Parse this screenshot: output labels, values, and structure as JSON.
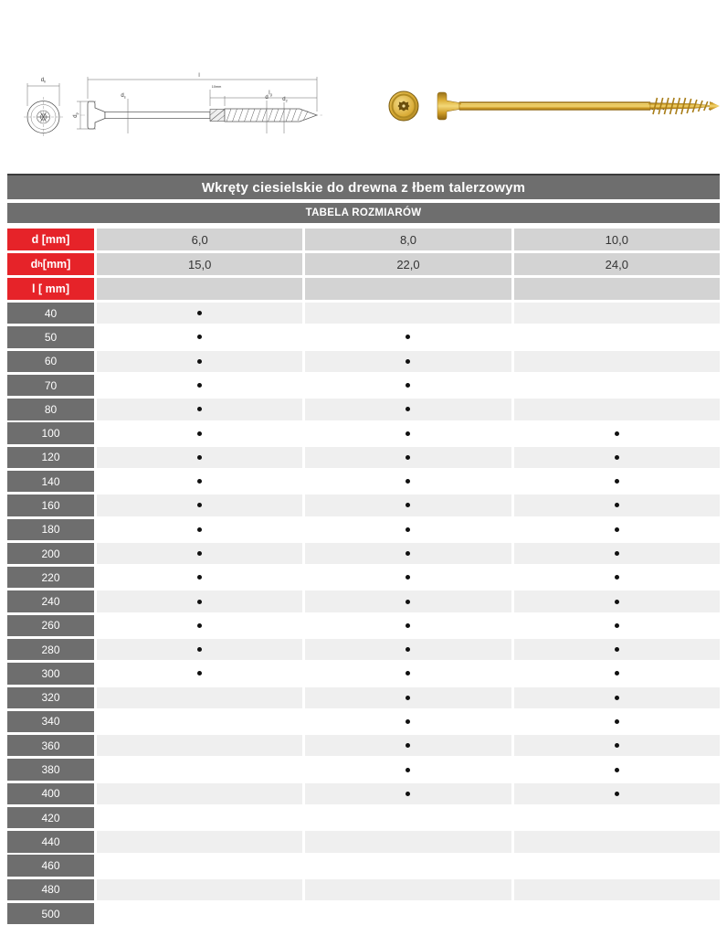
{
  "colors": {
    "bar_gray": "#6e6e6e",
    "bar_top_edge": "#3c3c3c",
    "label_red": "#e62329",
    "spec_cell_gray": "#d3d3d3",
    "row_alt_gray": "#efefef",
    "row_white": "#ffffff",
    "dot_black": "#111111",
    "screw_gold": "#d9a62e"
  },
  "drawing": {
    "labels": {
      "head_diameter": {
        "main": "d",
        "sub": "h",
        "rest": ""
      },
      "head_height": {
        "main": "d",
        "sub": "p",
        "rest": ""
      },
      "shank_diameter": {
        "main": "d",
        "sub": "s",
        "rest": ""
      },
      "thread_diameter": {
        "main": "d",
        "sub": "",
        "rest": ""
      },
      "tip_diameter": {
        "main": "d",
        "sub": "2",
        "rest": ""
      },
      "total_length": {
        "main": "l",
        "sub": "",
        "rest": ""
      },
      "thread_length": {
        "main": "l",
        "sub": "g",
        "rest": ""
      },
      "cutter_note": {
        "main": "10mm",
        "sub": "",
        "rest": ""
      }
    }
  },
  "table": {
    "title": "Wkręty ciesielskie do drewna z łbem talerzowym",
    "subtitle": "TABELA ROZMIARÓW",
    "spec_rows": [
      {
        "label": {
          "main": "d",
          "sub": "",
          "rest": " [mm]"
        },
        "values": [
          "6,0",
          "8,0",
          "10,0"
        ]
      },
      {
        "label": {
          "main": "d",
          "sub": "h",
          "rest": " [mm]"
        },
        "values": [
          "15,0",
          "22,0",
          "24,0"
        ]
      },
      {
        "label": {
          "main": "l",
          "sub": "",
          "rest": " [ mm]"
        },
        "values": [
          "",
          "",
          ""
        ]
      }
    ],
    "length_rows": [
      {
        "length": "40",
        "available": [
          true,
          false,
          false
        ]
      },
      {
        "length": "50",
        "available": [
          true,
          true,
          false
        ]
      },
      {
        "length": "60",
        "available": [
          true,
          true,
          false
        ]
      },
      {
        "length": "70",
        "available": [
          true,
          true,
          false
        ]
      },
      {
        "length": "80",
        "available": [
          true,
          true,
          false
        ]
      },
      {
        "length": "100",
        "available": [
          true,
          true,
          true
        ]
      },
      {
        "length": "120",
        "available": [
          true,
          true,
          true
        ]
      },
      {
        "length": "140",
        "available": [
          true,
          true,
          true
        ]
      },
      {
        "length": "160",
        "available": [
          true,
          true,
          true
        ]
      },
      {
        "length": "180",
        "available": [
          true,
          true,
          true
        ]
      },
      {
        "length": "200",
        "available": [
          true,
          true,
          true
        ]
      },
      {
        "length": "220",
        "available": [
          true,
          true,
          true
        ]
      },
      {
        "length": "240",
        "available": [
          true,
          true,
          true
        ]
      },
      {
        "length": "260",
        "available": [
          true,
          true,
          true
        ]
      },
      {
        "length": "280",
        "available": [
          true,
          true,
          true
        ]
      },
      {
        "length": "300",
        "available": [
          true,
          true,
          true
        ]
      },
      {
        "length": "320",
        "available": [
          false,
          true,
          true
        ]
      },
      {
        "length": "340",
        "available": [
          false,
          true,
          true
        ]
      },
      {
        "length": "360",
        "available": [
          false,
          true,
          true
        ]
      },
      {
        "length": "380",
        "available": [
          false,
          true,
          true
        ]
      },
      {
        "length": "400",
        "available": [
          false,
          true,
          true
        ]
      },
      {
        "length": "420",
        "available": [
          false,
          false,
          false
        ]
      },
      {
        "length": "440",
        "available": [
          false,
          false,
          false
        ]
      },
      {
        "length": "460",
        "available": [
          false,
          false,
          false
        ]
      },
      {
        "length": "480",
        "available": [
          false,
          false,
          false
        ]
      },
      {
        "length": "500",
        "available": [
          false,
          false,
          false
        ]
      }
    ]
  }
}
